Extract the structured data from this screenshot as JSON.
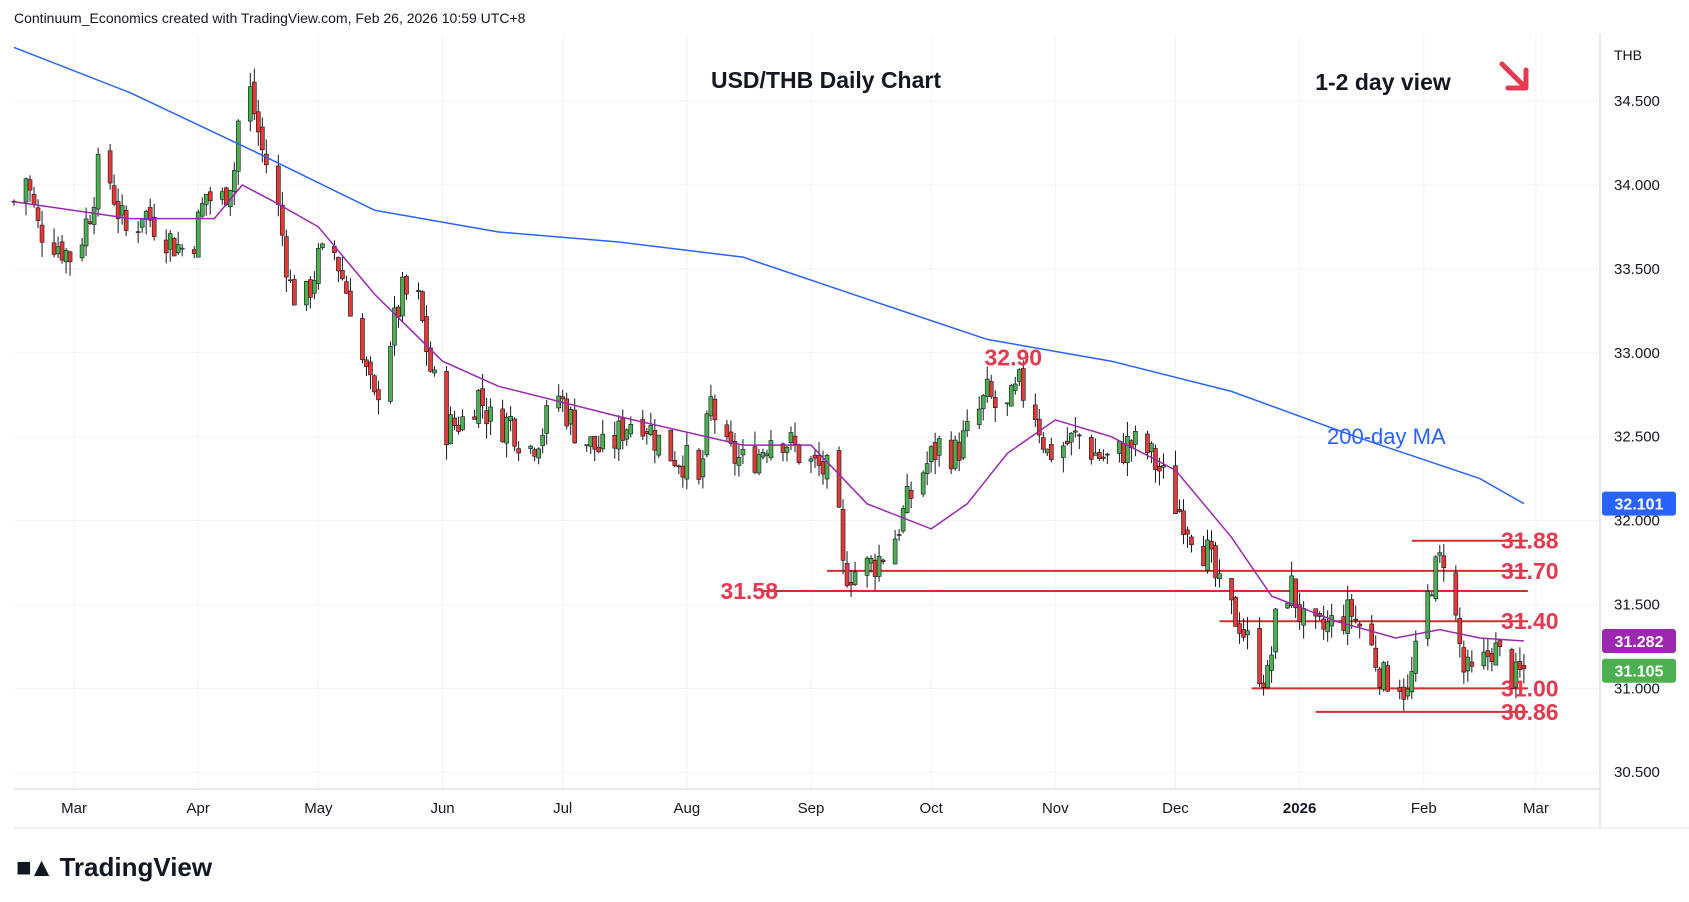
{
  "header": {
    "attribution": "Continuum_Economics created with TradingView.com, Feb 26, 2026 10:59 UTC+8"
  },
  "footer": {
    "brand": "TradingView"
  },
  "colors": {
    "up": "#4caf50",
    "down": "#e53935",
    "ma200": "#2962ff",
    "ma20": "#9c27b0",
    "annotation": "#e53950",
    "level": "#d32f2f",
    "grid": "#f0f3fa"
  },
  "chart_data": {
    "type": "candlestick",
    "title": "USD/THB Daily Chart",
    "subtitle": "1-2 day view",
    "view_direction_icon": "arrow-down-right-icon",
    "currency_label": "THB",
    "y_axis": {
      "range": [
        30.4,
        34.9
      ],
      "ticks": [
        "30.500",
        "31.000",
        "31.500",
        "32.000",
        "32.500",
        "33.000",
        "33.500",
        "34.000",
        "34.500"
      ]
    },
    "x_axis": {
      "range": [
        "2025-02-14",
        "2026-03-17"
      ],
      "ticks": [
        {
          "date": "2025-03-01",
          "label": "Mar"
        },
        {
          "date": "2025-04-01",
          "label": "Apr"
        },
        {
          "date": "2025-05-01",
          "label": "May"
        },
        {
          "date": "2025-06-01",
          "label": "Jun"
        },
        {
          "date": "2025-07-01",
          "label": "Jul"
        },
        {
          "date": "2025-08-01",
          "label": "Aug"
        },
        {
          "date": "2025-09-01",
          "label": "Sep"
        },
        {
          "date": "2025-10-01",
          "label": "Oct"
        },
        {
          "date": "2025-11-01",
          "label": "Nov"
        },
        {
          "date": "2025-12-01",
          "label": "Dec"
        },
        {
          "date": "2026-01-01",
          "label": "2026"
        },
        {
          "date": "2026-02-01",
          "label": "Feb"
        },
        {
          "date": "2026-03-01",
          "label": "Mar"
        }
      ]
    },
    "grid": true,
    "close_series": [
      [
        "2025-02-14",
        33.9
      ],
      [
        "2025-02-17",
        34.05
      ],
      [
        "2025-02-20",
        33.75
      ],
      [
        "2025-02-25",
        33.65
      ],
      [
        "2025-03-01",
        33.55
      ],
      [
        "2025-03-05",
        33.85
      ],
      [
        "2025-03-08",
        34.2
      ],
      [
        "2025-03-12",
        33.85
      ],
      [
        "2025-03-15",
        33.65
      ],
      [
        "2025-03-18",
        33.85
      ],
      [
        "2025-03-22",
        33.75
      ],
      [
        "2025-03-26",
        33.65
      ],
      [
        "2025-03-30",
        33.6
      ],
      [
        "2025-04-03",
        33.95
      ],
      [
        "2025-04-06",
        33.85
      ],
      [
        "2025-04-10",
        34.1
      ],
      [
        "2025-04-12",
        34.65
      ],
      [
        "2025-04-14",
        34.55
      ],
      [
        "2025-04-17",
        34.2
      ],
      [
        "2025-04-20",
        34.0
      ],
      [
        "2025-04-24",
        33.4
      ],
      [
        "2025-04-27",
        33.25
      ],
      [
        "2025-05-01",
        33.55
      ],
      [
        "2025-05-05",
        33.6
      ],
      [
        "2025-05-09",
        33.3
      ],
      [
        "2025-05-12",
        32.95
      ],
      [
        "2025-05-15",
        32.7
      ],
      [
        "2025-05-18",
        33.0
      ],
      [
        "2025-05-22",
        33.35
      ],
      [
        "2025-05-26",
        33.3
      ],
      [
        "2025-05-29",
        32.9
      ],
      [
        "2025-06-02",
        32.55
      ],
      [
        "2025-06-06",
        32.6
      ],
      [
        "2025-06-10",
        32.75
      ],
      [
        "2025-06-14",
        32.55
      ],
      [
        "2025-06-18",
        32.6
      ],
      [
        "2025-06-22",
        32.4
      ],
      [
        "2025-06-26",
        32.55
      ],
      [
        "2025-06-30",
        32.75
      ],
      [
        "2025-07-04",
        32.55
      ],
      [
        "2025-07-08",
        32.45
      ],
      [
        "2025-07-12",
        32.4
      ],
      [
        "2025-07-16",
        32.55
      ],
      [
        "2025-07-20",
        32.65
      ],
      [
        "2025-07-24",
        32.5
      ],
      [
        "2025-07-28",
        32.4
      ],
      [
        "2025-08-01",
        32.35
      ],
      [
        "2025-08-04",
        32.2
      ],
      [
        "2025-08-07",
        32.7
      ],
      [
        "2025-08-11",
        32.4
      ],
      [
        "2025-08-15",
        32.35
      ],
      [
        "2025-08-19",
        32.4
      ],
      [
        "2025-08-23",
        32.55
      ],
      [
        "2025-08-27",
        32.45
      ],
      [
        "2025-08-31",
        32.35
      ],
      [
        "2025-09-04",
        32.3
      ],
      [
        "2025-09-07",
        32.25
      ],
      [
        "2025-09-09",
        31.7
      ],
      [
        "2025-09-13",
        31.7
      ],
      [
        "2025-09-17",
        31.75
      ],
      [
        "2025-09-21",
        31.85
      ],
      [
        "2025-09-25",
        32.1
      ],
      [
        "2025-09-29",
        32.3
      ],
      [
        "2025-10-03",
        32.45
      ],
      [
        "2025-10-07",
        32.4
      ],
      [
        "2025-10-11",
        32.55
      ],
      [
        "2025-10-15",
        32.75
      ],
      [
        "2025-10-19",
        32.6
      ],
      [
        "2025-10-23",
        32.8
      ],
      [
        "2025-10-27",
        32.65
      ],
      [
        "2025-10-30",
        32.4
      ],
      [
        "2025-11-03",
        32.45
      ],
      [
        "2025-11-07",
        32.5
      ],
      [
        "2025-11-11",
        32.4
      ],
      [
        "2025-11-15",
        32.35
      ],
      [
        "2025-11-19",
        32.45
      ],
      [
        "2025-11-23",
        32.45
      ],
      [
        "2025-11-27",
        32.3
      ],
      [
        "2025-12-01",
        32.1
      ],
      [
        "2025-12-05",
        31.95
      ],
      [
        "2025-12-09",
        31.8
      ],
      [
        "2025-12-13",
        31.5
      ],
      [
        "2025-12-17",
        31.4
      ],
      [
        "2025-12-21",
        31.15
      ],
      [
        "2025-12-24",
        31.05
      ],
      [
        "2025-12-27",
        31.55
      ],
      [
        "2025-12-30",
        31.6
      ],
      [
        "2026-01-03",
        31.3
      ],
      [
        "2026-01-07",
        31.35
      ],
      [
        "2026-01-10",
        31.4
      ],
      [
        "2026-01-14",
        31.45
      ],
      [
        "2026-01-18",
        31.3
      ],
      [
        "2026-01-22",
        31.05
      ],
      [
        "2026-01-25",
        31.1
      ],
      [
        "2026-01-28",
        30.95
      ],
      [
        "2026-01-31",
        31.3
      ],
      [
        "2026-02-03",
        31.65
      ],
      [
        "2026-02-06",
        31.8
      ],
      [
        "2026-02-08",
        31.55
      ],
      [
        "2026-02-11",
        31.1
      ],
      [
        "2026-02-14",
        31.05
      ],
      [
        "2026-02-18",
        31.25
      ],
      [
        "2026-02-21",
        31.15
      ],
      [
        "2026-02-24",
        31.05
      ],
      [
        "2026-02-26",
        31.105
      ]
    ],
    "series": [
      {
        "name": "200-day MA",
        "color": "#2962ff",
        "points": [
          [
            "2025-02-14",
            34.82
          ],
          [
            "2025-03-15",
            34.55
          ],
          [
            "2025-04-15",
            34.2
          ],
          [
            "2025-05-15",
            33.85
          ],
          [
            "2025-06-15",
            33.72
          ],
          [
            "2025-07-15",
            33.66
          ],
          [
            "2025-08-15",
            33.57
          ],
          [
            "2025-09-15",
            33.32
          ],
          [
            "2025-10-15",
            33.08
          ],
          [
            "2025-11-15",
            32.95
          ],
          [
            "2025-12-15",
            32.77
          ],
          [
            "2026-01-15",
            32.5
          ],
          [
            "2026-02-15",
            32.25
          ],
          [
            "2026-02-26",
            32.101
          ]
        ]
      },
      {
        "name": "",
        "color": "#9c27b0",
        "points": [
          [
            "2025-02-14",
            33.9
          ],
          [
            "2025-03-15",
            33.8
          ],
          [
            "2025-04-05",
            33.8
          ],
          [
            "2025-04-12",
            34.0
          ],
          [
            "2025-04-20",
            33.9
          ],
          [
            "2025-05-01",
            33.75
          ],
          [
            "2025-05-15",
            33.35
          ],
          [
            "2025-06-01",
            32.95
          ],
          [
            "2025-06-15",
            32.8
          ],
          [
            "2025-07-15",
            32.62
          ],
          [
            "2025-08-15",
            32.45
          ],
          [
            "2025-09-01",
            32.45
          ],
          [
            "2025-09-15",
            32.1
          ],
          [
            "2025-10-01",
            31.95
          ],
          [
            "2025-10-10",
            32.1
          ],
          [
            "2025-10-20",
            32.4
          ],
          [
            "2025-11-01",
            32.6
          ],
          [
            "2025-11-15",
            32.5
          ],
          [
            "2025-12-01",
            32.3
          ],
          [
            "2025-12-15",
            31.9
          ],
          [
            "2025-12-25",
            31.55
          ],
          [
            "2026-01-10",
            31.4
          ],
          [
            "2026-01-25",
            31.3
          ],
          [
            "2026-02-05",
            31.35
          ],
          [
            "2026-02-15",
            31.3
          ],
          [
            "2026-02-26",
            31.282
          ]
        ]
      }
    ],
    "annotations": {
      "ma200_label": "200-day MA",
      "peak": {
        "label": "32.90",
        "date": "2025-10-24",
        "value": 32.9
      },
      "levels": [
        {
          "label": "31.88",
          "value": 31.88,
          "from": "2026-01-29",
          "to": "2026-02-27"
        },
        {
          "label": "31.70",
          "value": 31.7,
          "from": "2025-09-05",
          "to": "2026-02-27"
        },
        {
          "label": "31.58",
          "value": 31.58,
          "from": "2025-08-20",
          "to": "2026-02-27"
        },
        {
          "label": "31.40",
          "value": 31.4,
          "from": "2025-12-12",
          "to": "2026-02-27"
        },
        {
          "label": "31.00",
          "value": 31.0,
          "from": "2025-12-20",
          "to": "2026-02-27"
        },
        {
          "label": "30.86",
          "value": 30.86,
          "from": "2026-01-05",
          "to": "2026-02-27"
        }
      ]
    },
    "price_badges": [
      {
        "label": "32.101",
        "value": 32.101,
        "color": "#2962ff"
      },
      {
        "label": "31.282",
        "value": 31.282,
        "color": "#9c27b0"
      },
      {
        "label": "31.105",
        "value": 31.105,
        "color": "#4caf50"
      }
    ]
  }
}
